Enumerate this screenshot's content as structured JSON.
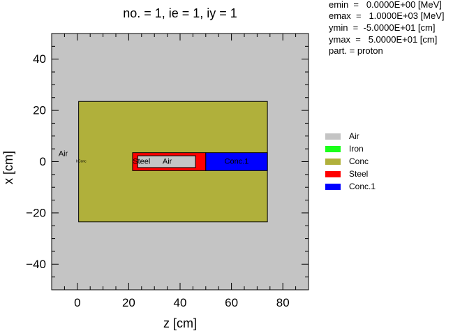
{
  "title": "no. =  1,  ie =  1,  iy =  1",
  "info": [
    {
      "key": "emin",
      "text": "emin  =   0.0000E+00 [MeV]"
    },
    {
      "key": "emax",
      "text": "emax  =   1.0000E+03 [MeV]"
    },
    {
      "key": "ymin",
      "text": "ymin  =  -5.0000E+01 [cm]"
    },
    {
      "key": "ymax",
      "text": "ymax  =   5.0000E+01 [cm]"
    },
    {
      "key": "part",
      "text": "part. = proton"
    }
  ],
  "legend": [
    {
      "label": "Air",
      "color": "#c4c4c4"
    },
    {
      "label": "Iron",
      "color": "#1aff1a"
    },
    {
      "label": "Conc",
      "color": "#b0b03b"
    },
    {
      "label": "Steel",
      "color": "#ff0000"
    },
    {
      "label": "Conc.1",
      "color": "#0000ff"
    }
  ],
  "chart_data": {
    "type": "geometry-map",
    "xlabel": "z [cm]",
    "ylabel": "x [cm]",
    "xlim": [
      -10,
      90
    ],
    "ylim": [
      -50,
      50
    ],
    "xticks": [
      0,
      20,
      40,
      60,
      80
    ],
    "yticks": [
      -40,
      -20,
      0,
      20,
      40
    ],
    "xticklabels": [
      "0",
      "20",
      "40",
      "60",
      "80"
    ],
    "yticklabels": [
      "−40",
      "−20",
      "0",
      "20",
      "40"
    ],
    "regions": [
      {
        "name": "Air",
        "color": "#c4c4c4",
        "z": [
          -10,
          90
        ],
        "x": [
          -50,
          50
        ]
      },
      {
        "name": "Conc",
        "color": "#b0b03b",
        "z": [
          0.5,
          74
        ],
        "x": [
          -23.5,
          23.5
        ]
      },
      {
        "name": "Steel",
        "color": "#ff0000",
        "z": [
          21.5,
          50
        ],
        "x": [
          -3.5,
          3.5
        ]
      },
      {
        "name": "Air",
        "color": "#c4c4c4",
        "z": [
          23.5,
          46
        ],
        "x": [
          -2.3,
          2.3
        ]
      },
      {
        "name": "Conc.1",
        "color": "#0000ff",
        "z": [
          50,
          74
        ],
        "x": [
          -3.5,
          3.5
        ]
      }
    ],
    "region_labels": [
      {
        "text": "Air",
        "z": -5.5,
        "x": 3,
        "size": 11
      },
      {
        "text": "IrConc",
        "z": 1.5,
        "x": 0,
        "size": 5
      },
      {
        "text": "Steel",
        "z": 25,
        "x": 0,
        "size": 11
      },
      {
        "text": "Air",
        "z": 35,
        "x": 0,
        "size": 11
      },
      {
        "text": "Conc.1",
        "z": 62,
        "x": 0,
        "size": 11
      }
    ]
  }
}
